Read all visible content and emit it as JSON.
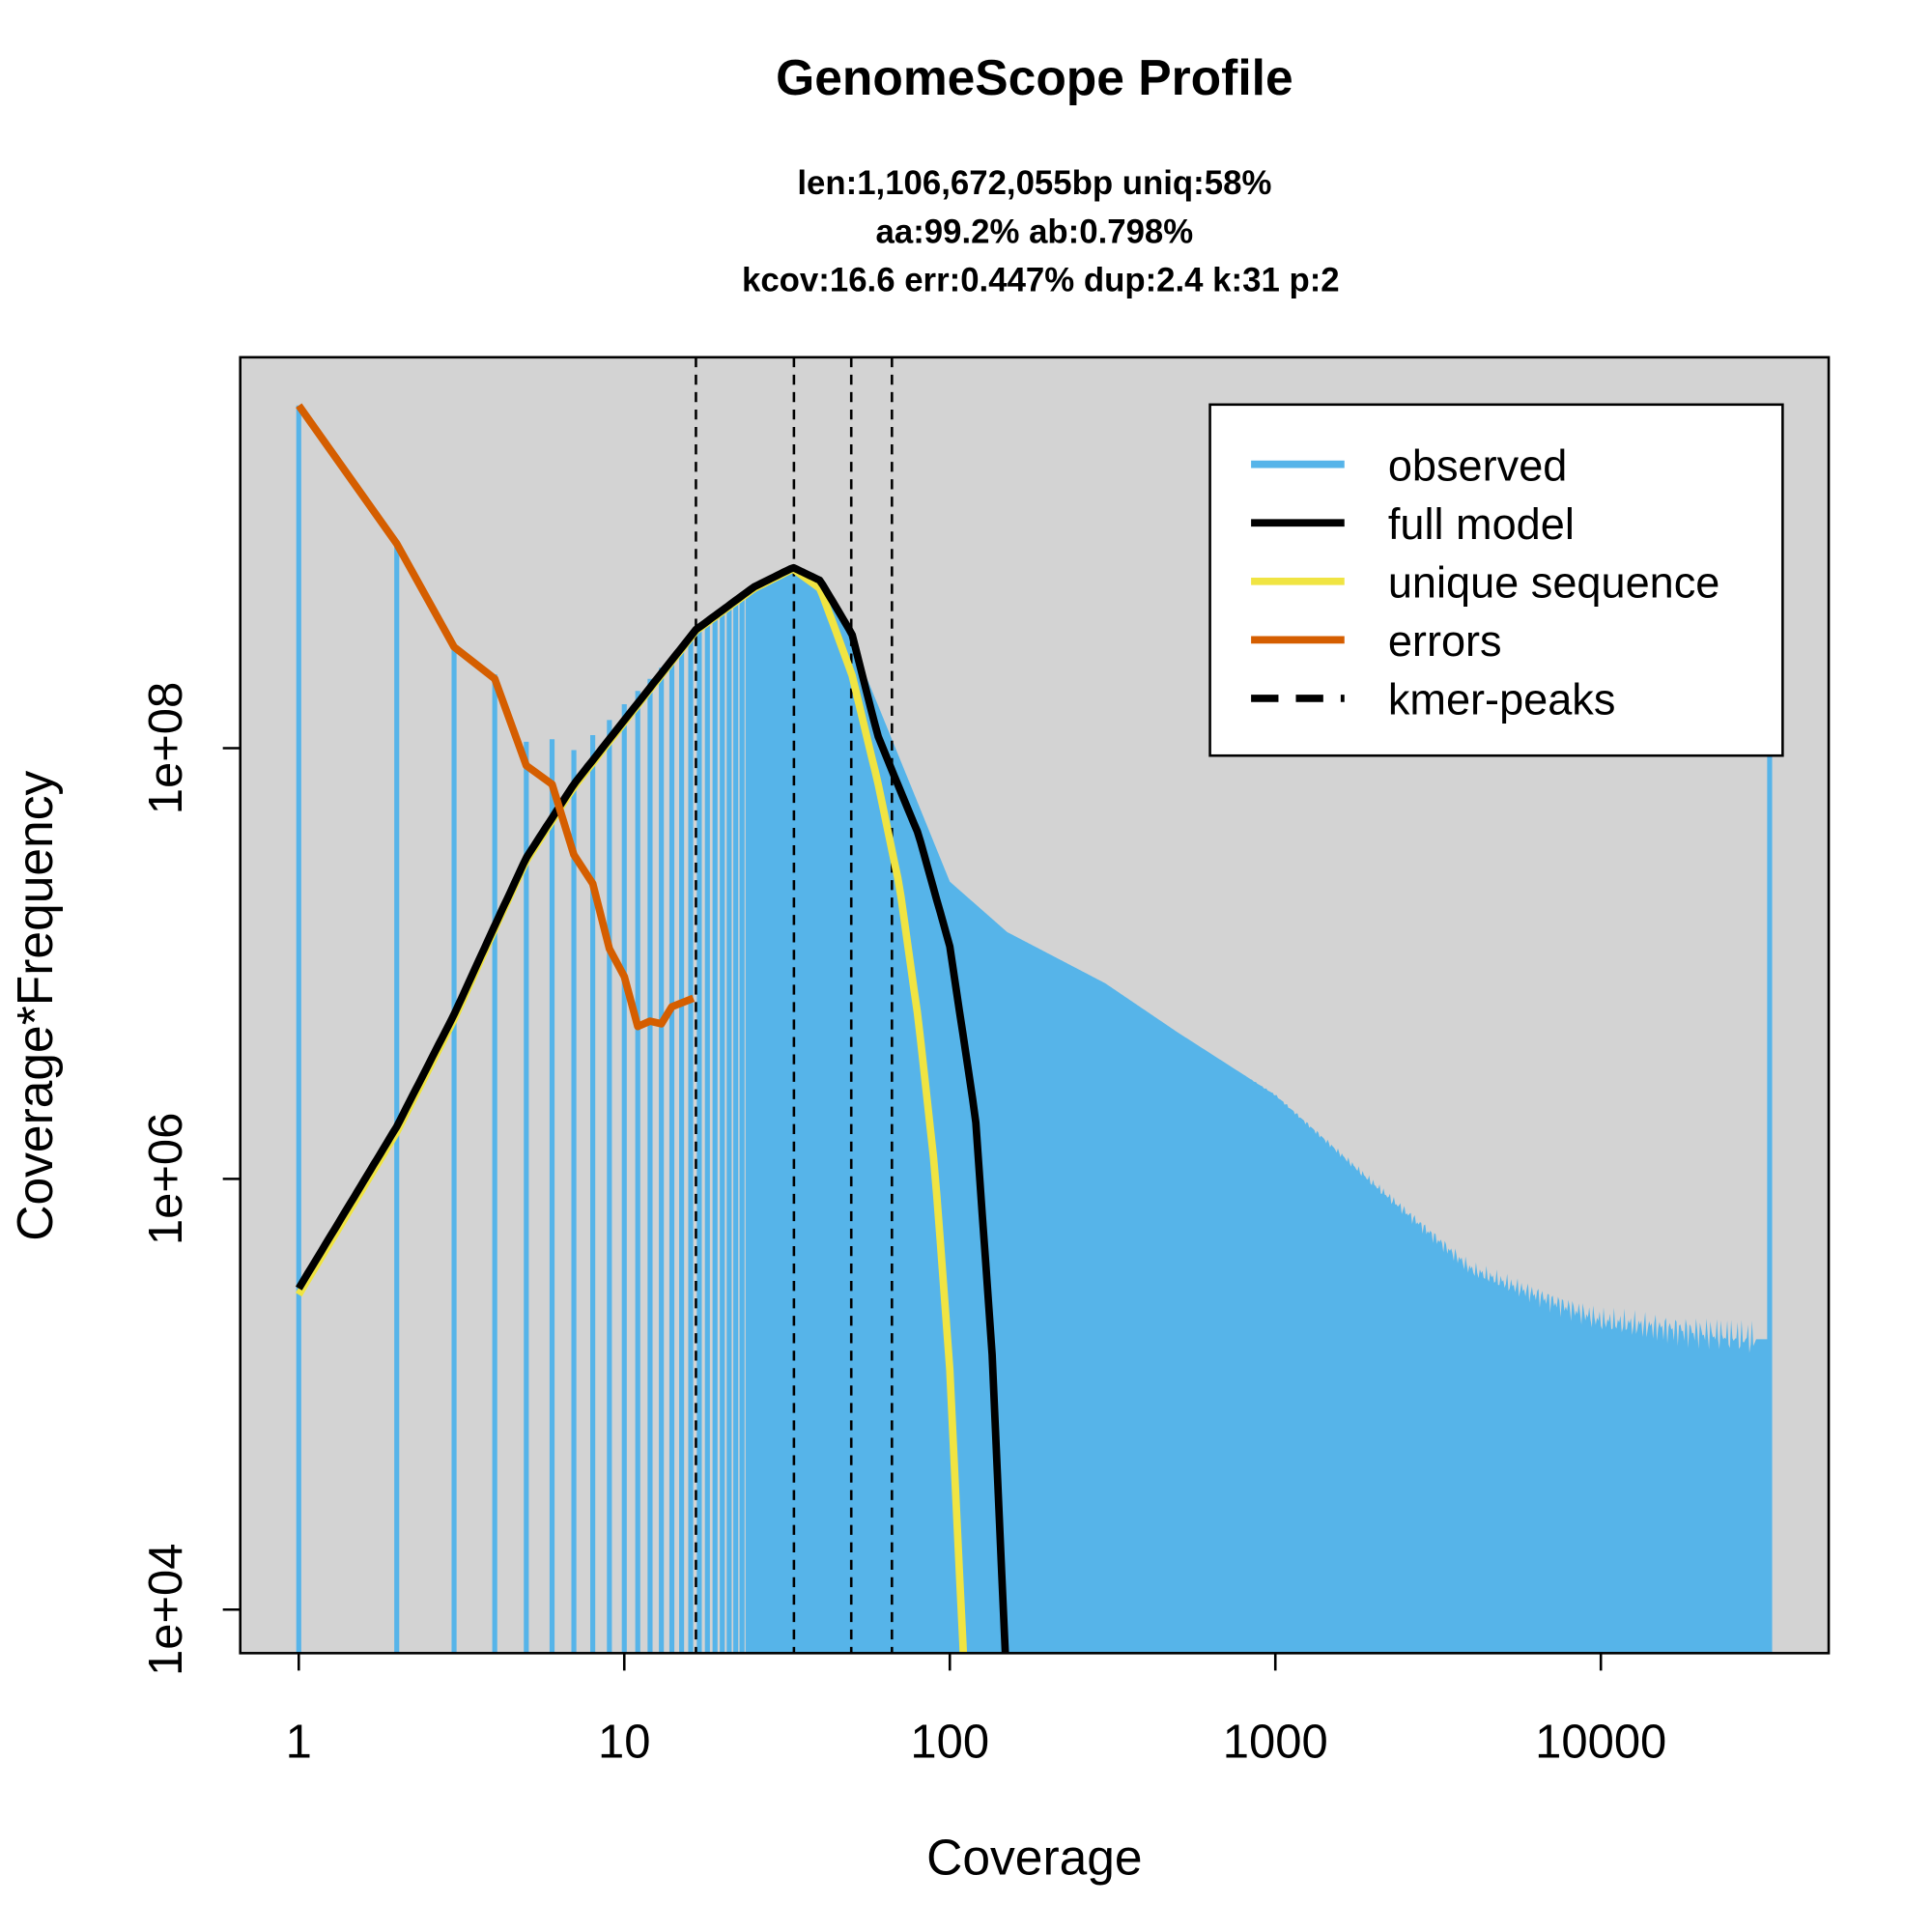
{
  "chart_data": {
    "type": "line",
    "title": "GenomeScope Profile",
    "subtitle": [
      "len:1,106,672,055bp uniq:58%",
      "aa:99.2% ab:0.798%",
      "kcov:16.6 err:0.447%  dup:2.4  k:31 p:2"
    ],
    "xlabel": "Coverage",
    "ylabel": "Coverage*Frequency",
    "xscale": "log",
    "yscale": "log",
    "xlim": [
      0.66,
      50000
    ],
    "ylim": [
      6300,
      6500000000.0
    ],
    "xticks": [
      {
        "v": 1,
        "label": "1"
      },
      {
        "v": 10,
        "label": "10"
      },
      {
        "v": 100,
        "label": "100"
      },
      {
        "v": 1000,
        "label": "1000"
      },
      {
        "v": 10000,
        "label": "10000"
      }
    ],
    "yticks": [
      {
        "v": 10000,
        "label": "1e+04"
      },
      {
        "v": 1000000,
        "label": "1e+06"
      },
      {
        "v": 100000000,
        "label": "1e+08"
      }
    ],
    "legend": {
      "placement": "top-right",
      "entries": [
        {
          "label": "observed",
          "color": "#56B4E9",
          "style": "solid"
        },
        {
          "label": "full model",
          "color": "#000000",
          "style": "solid"
        },
        {
          "label": "unique sequence",
          "color": "#F0E442",
          "style": "solid"
        },
        {
          "label": "errors",
          "color": "#D55E00",
          "style": "solid"
        },
        {
          "label": "kmer-peaks",
          "color": "#000000",
          "style": "dashed"
        }
      ]
    },
    "colors": {
      "background": "#D3D3D3",
      "observed": "#56B4E9",
      "full_model": "#000000",
      "unique": "#F0E442",
      "errors": "#D55E00"
    },
    "kmer_peaks": [
      16.6,
      33.2,
      49.8,
      66.4
    ],
    "series": [
      {
        "name": "observed",
        "x": [
          1,
          2,
          3,
          4,
          5,
          6,
          7,
          8,
          9,
          10,
          16.6,
          25,
          33,
          45,
          60,
          80,
          100,
          150,
          300,
          500,
          1000,
          2000,
          4000,
          10000,
          30000
        ],
        "y": [
          3900000000.0,
          890000000.0,
          290000000.0,
          220000000.0,
          107000000.0,
          110000000.0,
          98000000.0,
          115000000.0,
          135000000.0,
          160000000.0,
          340000000.0,
          550000000.0,
          690000000.0,
          460000000.0,
          160000000.0,
          55000000.0,
          24000000.0,
          14000000.0,
          8100000.0,
          4800000.0,
          2450000.0,
          950000.0,
          380000.0,
          220000.0,
          180000.0
        ],
        "last_bar": {
          "x": 33000,
          "y": 100000000.0
        }
      },
      {
        "name": "full model",
        "x": [
          1,
          2,
          3,
          4,
          5,
          7,
          10,
          16.6,
          25,
          33,
          40,
          50,
          60,
          70,
          80,
          100,
          120,
          135,
          148
        ],
        "y": [
          310000.0,
          1750000.0,
          5800000.0,
          15000000.0,
          31000000.0,
          68000000.0,
          135000000.0,
          355000000.0,
          560000000.0,
          690000000.0,
          600000000.0,
          340000000.0,
          115000000.0,
          65000000.0,
          40000000.0,
          12000000.0,
          1900000.0,
          150000.0,
          6300
        ]
      },
      {
        "name": "unique sequence",
        "x": [
          1,
          2,
          3,
          4,
          5,
          7,
          10,
          16.6,
          25,
          33,
          40,
          50,
          60,
          70,
          80,
          90,
          100,
          110
        ],
        "y": [
          290000.0,
          1650000.0,
          5500000.0,
          14500000.0,
          30000000.0,
          66000000.0,
          132000000.0,
          350000000.0,
          550000000.0,
          680000000.0,
          550000000.0,
          220000000.0,
          70000000.0,
          23000000.0,
          5500000.0,
          1100000.0,
          130000.0,
          6300
        ]
      },
      {
        "name": "errors",
        "x": [
          1,
          2,
          3,
          4,
          5,
          6,
          7,
          8,
          9,
          10,
          11,
          12,
          13,
          14,
          16.3
        ],
        "y": [
          3900000000.0,
          890000000.0,
          295000000.0,
          210000000.0,
          83000000.0,
          68000000.0,
          32000000.0,
          23500000.0,
          11700000.0,
          8700000.0,
          5100000.0,
          5400000.0,
          5250000.0,
          6300000.0,
          6900000.0
        ]
      }
    ]
  }
}
